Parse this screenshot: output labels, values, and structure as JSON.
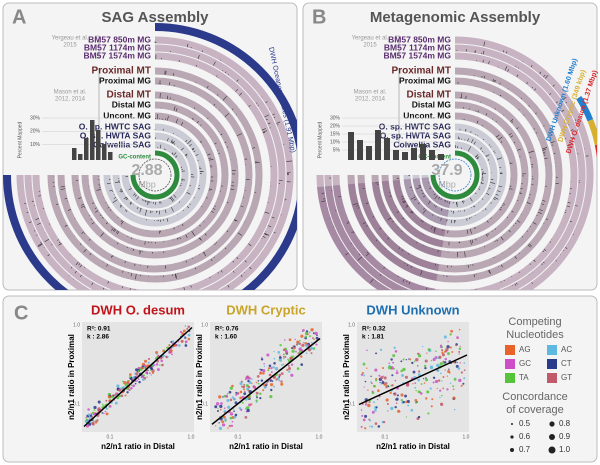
{
  "panel_a": {
    "letter": "A",
    "title": "SAG Assembly",
    "studies": [
      [
        "Yergeau et al.",
        "2015"
      ],
      [
        "Mason et al.",
        "2012, 2014"
      ]
    ],
    "tracks": [
      "BM57 850m MG",
      "BM57 1174m MG",
      "BM57 1574m MG",
      "Proximal MT",
      "Proximal MG",
      "Distal MT",
      "Distal MG",
      "Uncont. MG",
      "O. sp. HWTC SAG",
      "O. sp. HWTA SAG",
      "Colwellia SAG"
    ],
    "gc_label": "GC-content",
    "percent_label": "Percent Mapped",
    "percent_ticks": [
      "30%",
      "20%",
      "10%"
    ],
    "size": "2.88",
    "size_unit": "Mbp",
    "bins": [
      {
        "name": "DWH Oceanospirillales (1.91 Mbp)",
        "color": "#2c3a8c"
      }
    ]
  },
  "panel_b": {
    "letter": "B",
    "title": "Metagenomic Assembly",
    "studies": [
      [
        "Yergeau et al.",
        "2015"
      ],
      [
        "Mason et al.",
        "2012, 2014"
      ]
    ],
    "tracks": [
      "BM57 850m MG",
      "BM57 1174m MG",
      "BM57 1574m MG",
      "Proximal MT",
      "Proximal MG",
      "Distal MT",
      "Distal MG",
      "Uncont. MG",
      "O. sp. HWTC SAG",
      "O. sp. HWTA SAG",
      "Colwellia SAG"
    ],
    "gc_label": "GC-content",
    "percent_label": "Percent Mapped",
    "percent_ticks": [
      "30%",
      "20%",
      "15%",
      "10%",
      "5%"
    ],
    "size": "37.9",
    "size_unit": "Mbp",
    "bins": [
      {
        "name": "DWH Unknown (1.60 Mbp)",
        "color": "#1f7fd0"
      },
      {
        "name": "DWH Cryptic (349 kbp)",
        "color": "#d8b030"
      },
      {
        "name": "DWH O. desum (1.37 Mbp)",
        "color": "#d8262c"
      }
    ]
  },
  "panel_c": {
    "letter": "C",
    "plots": [
      {
        "title": "DWH O. desum",
        "color": "#c0141a",
        "r2": "R²: 0.91",
        "k": "k : 2.86"
      },
      {
        "title": "DWH Cryptic",
        "color": "#c9a42a",
        "r2": "R²: 0.76",
        "k": "k : 1.60"
      },
      {
        "title": "DWH Unknown",
        "color": "#1f6fb0",
        "r2": "R²: 0.32",
        "k": "k : 1.81"
      }
    ],
    "y_label": "n2/n1 ratio in Proximal",
    "x_label": "n2/n1 ratio in Distal",
    "ticks": [
      "0.1",
      "1.0"
    ],
    "legend": {
      "nucleotides_title": [
        "Competing",
        "Nucleotides"
      ],
      "nucleotides": [
        {
          "label": "AG",
          "color": "#e8632a"
        },
        {
          "label": "AC",
          "color": "#5fb8e0"
        },
        {
          "label": "GC",
          "color": "#cc4fc8"
        },
        {
          "label": "CT",
          "color": "#2a3a8a"
        },
        {
          "label": "TA",
          "color": "#55c43a"
        },
        {
          "label": "GT",
          "color": "#c25a6a"
        }
      ],
      "coverage_title": [
        "Concordance",
        "of coverage"
      ],
      "coverage": [
        "0.5",
        "0.8",
        "0.6",
        "0.9",
        "0.7",
        "1.0"
      ]
    }
  }
}
